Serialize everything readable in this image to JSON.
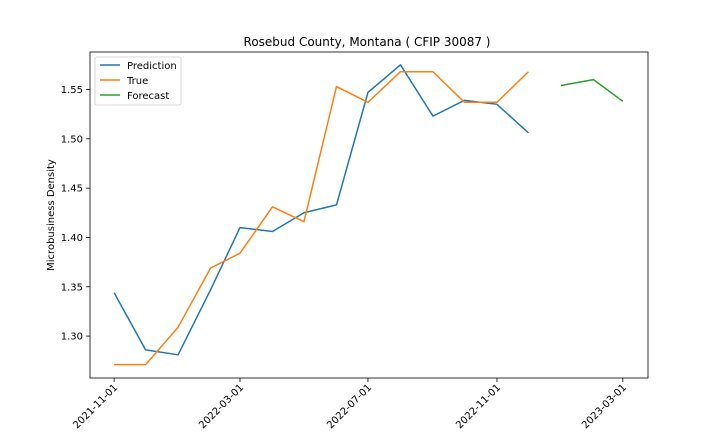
{
  "chart_data": {
    "type": "line",
    "title": "Rosebud County, Montana ( CFIP 30087 )",
    "xlabel": "",
    "ylabel": "Microbusiness Density",
    "x_ticks": [
      "2021-11-01",
      "2022-03-01",
      "2022-07-01",
      "2022-11-01",
      "2023-03-01"
    ],
    "y_ticks": [
      "1.30",
      "1.35",
      "1.40",
      "1.45",
      "1.50",
      "1.55"
    ],
    "xlim": [
      "2021-10-09",
      "2023-03-25"
    ],
    "ylim": [
      1.2575,
      1.588
    ],
    "grid": false,
    "legend_position": "top-left",
    "series": [
      {
        "name": "Prediction",
        "color": "#1f77b4",
        "points": [
          {
            "x": "2021-11-01",
            "y": 1.344
          },
          {
            "x": "2021-12-01",
            "y": 1.286
          },
          {
            "x": "2022-01-01",
            "y": 1.281
          },
          {
            "x": "2022-02-01",
            "y": 1.347
          },
          {
            "x": "2022-03-01",
            "y": 1.41
          },
          {
            "x": "2022-04-01",
            "y": 1.406
          },
          {
            "x": "2022-05-01",
            "y": 1.425
          },
          {
            "x": "2022-06-01",
            "y": 1.433
          },
          {
            "x": "2022-07-01",
            "y": 1.547
          },
          {
            "x": "2022-08-01",
            "y": 1.575
          },
          {
            "x": "2022-09-01",
            "y": 1.523
          },
          {
            "x": "2022-10-01",
            "y": 1.539
          },
          {
            "x": "2022-11-01",
            "y": 1.535
          },
          {
            "x": "2022-12-01",
            "y": 1.506
          }
        ]
      },
      {
        "name": "True",
        "color": "#ff7f0e",
        "points": [
          {
            "x": "2021-11-01",
            "y": 1.271
          },
          {
            "x": "2021-12-01",
            "y": 1.271
          },
          {
            "x": "2022-01-01",
            "y": 1.309
          },
          {
            "x": "2022-02-01",
            "y": 1.369
          },
          {
            "x": "2022-03-01",
            "y": 1.384
          },
          {
            "x": "2022-04-01",
            "y": 1.431
          },
          {
            "x": "2022-05-01",
            "y": 1.416
          },
          {
            "x": "2022-06-01",
            "y": 1.553
          },
          {
            "x": "2022-07-01",
            "y": 1.537
          },
          {
            "x": "2022-08-01",
            "y": 1.568
          },
          {
            "x": "2022-09-01",
            "y": 1.568
          },
          {
            "x": "2022-10-01",
            "y": 1.537
          },
          {
            "x": "2022-11-01",
            "y": 1.537
          },
          {
            "x": "2022-12-01",
            "y": 1.568
          }
        ]
      },
      {
        "name": "Forecast",
        "color": "#2ca02c",
        "points": [
          {
            "x": "2023-01-01",
            "y": 1.554
          },
          {
            "x": "2023-02-01",
            "y": 1.56
          },
          {
            "x": "2023-03-01",
            "y": 1.538
          }
        ]
      }
    ]
  }
}
